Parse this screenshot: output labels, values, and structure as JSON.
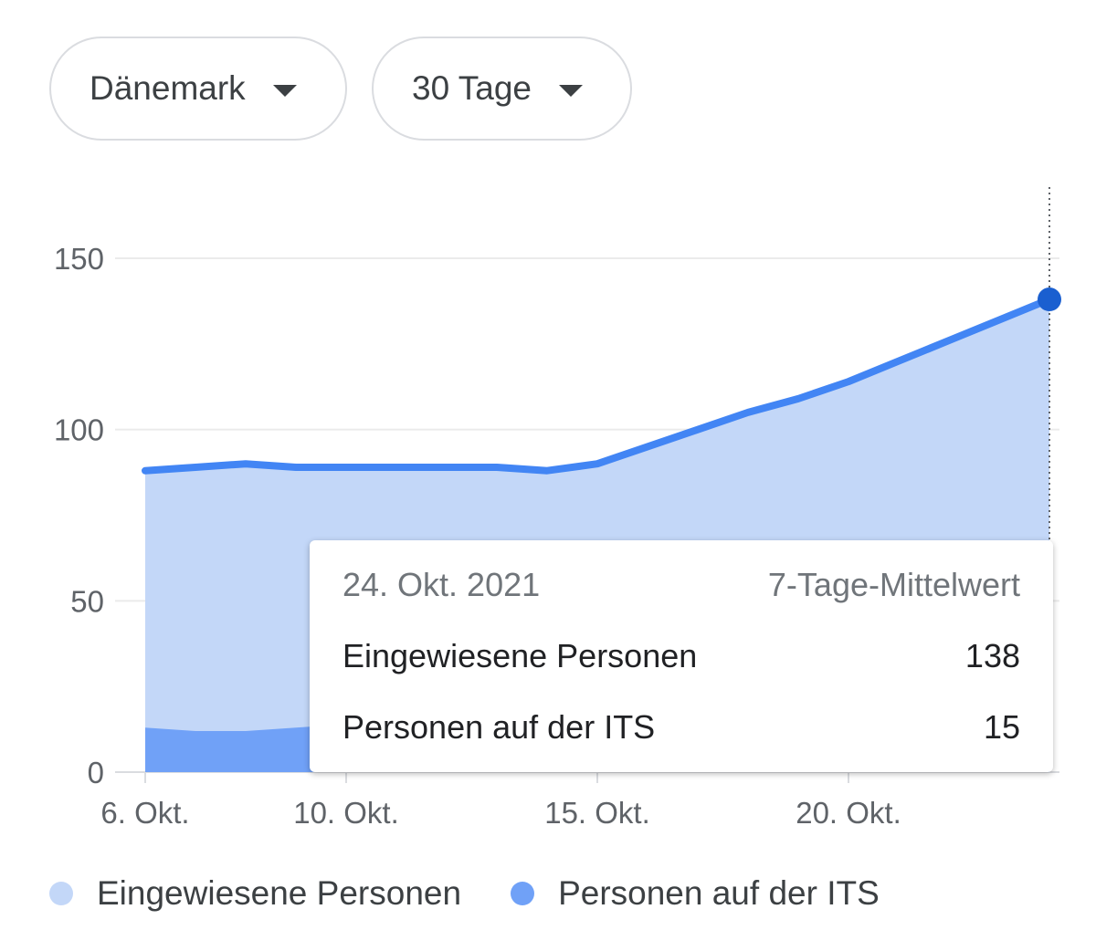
{
  "filters": {
    "country": "Dänemark",
    "range": "30 Tage"
  },
  "chart_data": {
    "type": "area",
    "x": [
      "2021-10-06",
      "2021-10-07",
      "2021-10-08",
      "2021-10-09",
      "2021-10-10",
      "2021-10-11",
      "2021-10-12",
      "2021-10-13",
      "2021-10-14",
      "2021-10-15",
      "2021-10-16",
      "2021-10-17",
      "2021-10-18",
      "2021-10-19",
      "2021-10-20",
      "2021-10-21",
      "2021-10-22",
      "2021-10-23",
      "2021-10-24"
    ],
    "series": [
      {
        "name": "Eingewiesene Personen",
        "color": "#c3d7f8",
        "values": [
          88,
          89,
          90,
          89,
          89,
          89,
          89,
          89,
          88,
          90,
          95,
          100,
          105,
          109,
          114,
          120,
          126,
          132,
          138
        ]
      },
      {
        "name": "Personen auf der ITS",
        "color": "#70a1f7",
        "values": [
          13,
          12,
          12,
          13,
          14,
          14,
          15,
          15,
          15,
          15,
          15,
          15,
          15,
          15,
          15,
          15,
          15,
          15,
          15
        ]
      }
    ],
    "line_color": "#4285f4",
    "marker_color": "#1a5fd0",
    "x_ticks": [
      {
        "date": "2021-10-06",
        "label": "6. Okt."
      },
      {
        "date": "2021-10-10",
        "label": "10. Okt."
      },
      {
        "date": "2021-10-15",
        "label": "15. Okt."
      },
      {
        "date": "2021-10-20",
        "label": "20. Okt."
      }
    ],
    "y_ticks": [
      0,
      50,
      100,
      150
    ],
    "ylim": [
      0,
      150
    ],
    "grid": true,
    "legend_position": "bottom"
  },
  "tooltip": {
    "date": "24. Okt. 2021",
    "label": "7-Tage-Mittelwert",
    "rows": [
      {
        "name": "Eingewiesene Personen",
        "value": "138"
      },
      {
        "name": "Personen auf der ITS",
        "value": "15"
      }
    ]
  },
  "legend": [
    {
      "label": "Eingewiesene Personen",
      "color": "#c3d7f8"
    },
    {
      "label": "Personen auf der ITS",
      "color": "#70a1f7"
    }
  ]
}
